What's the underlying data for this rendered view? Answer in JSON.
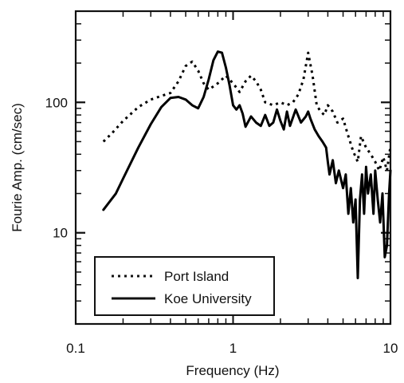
{
  "chart_data": {
    "type": "line",
    "xlabel": "Frequency (Hz)",
    "ylabel": "Fourie Amp. (cm/sec)",
    "x_scale": "log",
    "y_scale": "log",
    "xlim": [
      0.1,
      10
    ],
    "ylim": [
      2,
      500
    ],
    "x_tick_labels": [
      {
        "value": 0.1,
        "label": "0.1"
      },
      {
        "value": 1,
        "label": "1"
      },
      {
        "value": 10,
        "label": "10"
      }
    ],
    "y_tick_labels": [
      {
        "value": 10,
        "label": "10"
      },
      {
        "value": 100,
        "label": "100"
      }
    ],
    "grid": false,
    "legend_position": "bottom-left",
    "series": [
      {
        "name": "Port Island",
        "style": "dotted",
        "color": "#000000",
        "points": [
          [
            0.15,
            50
          ],
          [
            0.17,
            58
          ],
          [
            0.2,
            72
          ],
          [
            0.25,
            92
          ],
          [
            0.3,
            105
          ],
          [
            0.35,
            112
          ],
          [
            0.4,
            118
          ],
          [
            0.45,
            145
          ],
          [
            0.5,
            190
          ],
          [
            0.55,
            205
          ],
          [
            0.6,
            175
          ],
          [
            0.65,
            140
          ],
          [
            0.7,
            125
          ],
          [
            0.8,
            140
          ],
          [
            0.9,
            160
          ],
          [
            1.0,
            140
          ],
          [
            1.1,
            120
          ],
          [
            1.2,
            145
          ],
          [
            1.3,
            160
          ],
          [
            1.4,
            145
          ],
          [
            1.5,
            125
          ],
          [
            1.6,
            100
          ],
          [
            1.8,
            95
          ],
          [
            2.0,
            100
          ],
          [
            2.2,
            95
          ],
          [
            2.4,
            100
          ],
          [
            2.6,
            115
          ],
          [
            2.8,
            150
          ],
          [
            3.0,
            240
          ],
          [
            3.2,
            160
          ],
          [
            3.4,
            95
          ],
          [
            3.6,
            85
          ],
          [
            3.8,
            80
          ],
          [
            4.0,
            95
          ],
          [
            4.3,
            85
          ],
          [
            4.6,
            70
          ],
          [
            5.0,
            75
          ],
          [
            5.4,
            55
          ],
          [
            5.8,
            42
          ],
          [
            6.2,
            35
          ],
          [
            6.5,
            55
          ],
          [
            7.0,
            45
          ],
          [
            7.5,
            40
          ],
          [
            8.0,
            35
          ],
          [
            8.5,
            30
          ],
          [
            9.0,
            38
          ],
          [
            9.5,
            30
          ],
          [
            10.0,
            46
          ]
        ]
      },
      {
        "name": "Koe University",
        "style": "solid",
        "color": "#000000",
        "points": [
          [
            0.15,
            15
          ],
          [
            0.18,
            20
          ],
          [
            0.2,
            26
          ],
          [
            0.25,
            45
          ],
          [
            0.3,
            68
          ],
          [
            0.35,
            92
          ],
          [
            0.4,
            108
          ],
          [
            0.45,
            110
          ],
          [
            0.5,
            105
          ],
          [
            0.55,
            95
          ],
          [
            0.6,
            90
          ],
          [
            0.65,
            110
          ],
          [
            0.7,
            150
          ],
          [
            0.75,
            210
          ],
          [
            0.8,
            245
          ],
          [
            0.85,
            240
          ],
          [
            0.9,
            185
          ],
          [
            0.95,
            135
          ],
          [
            1.0,
            95
          ],
          [
            1.05,
            88
          ],
          [
            1.1,
            95
          ],
          [
            1.15,
            82
          ],
          [
            1.2,
            65
          ],
          [
            1.3,
            78
          ],
          [
            1.4,
            70
          ],
          [
            1.5,
            66
          ],
          [
            1.6,
            80
          ],
          [
            1.7,
            66
          ],
          [
            1.8,
            70
          ],
          [
            1.9,
            88
          ],
          [
            2.0,
            72
          ],
          [
            2.1,
            62
          ],
          [
            2.2,
            85
          ],
          [
            2.3,
            66
          ],
          [
            2.5,
            88
          ],
          [
            2.7,
            70
          ],
          [
            2.9,
            78
          ],
          [
            3.0,
            85
          ],
          [
            3.1,
            75
          ],
          [
            3.3,
            62
          ],
          [
            3.5,
            55
          ],
          [
            3.7,
            50
          ],
          [
            3.9,
            45
          ],
          [
            4.0,
            35
          ],
          [
            4.1,
            28
          ],
          [
            4.3,
            36
          ],
          [
            4.5,
            24
          ],
          [
            4.7,
            30
          ],
          [
            5.0,
            22
          ],
          [
            5.2,
            28
          ],
          [
            5.4,
            14
          ],
          [
            5.6,
            22
          ],
          [
            5.8,
            12
          ],
          [
            6.0,
            18
          ],
          [
            6.2,
            4.5
          ],
          [
            6.4,
            18
          ],
          [
            6.6,
            28
          ],
          [
            6.8,
            14
          ],
          [
            7.0,
            32
          ],
          [
            7.2,
            20
          ],
          [
            7.5,
            28
          ],
          [
            7.8,
            14
          ],
          [
            8.0,
            30
          ],
          [
            8.3,
            18
          ],
          [
            8.6,
            12
          ],
          [
            8.9,
            20
          ],
          [
            9.2,
            6.5
          ],
          [
            9.5,
            8
          ],
          [
            9.8,
            20
          ],
          [
            10.0,
            30
          ]
        ]
      }
    ]
  }
}
